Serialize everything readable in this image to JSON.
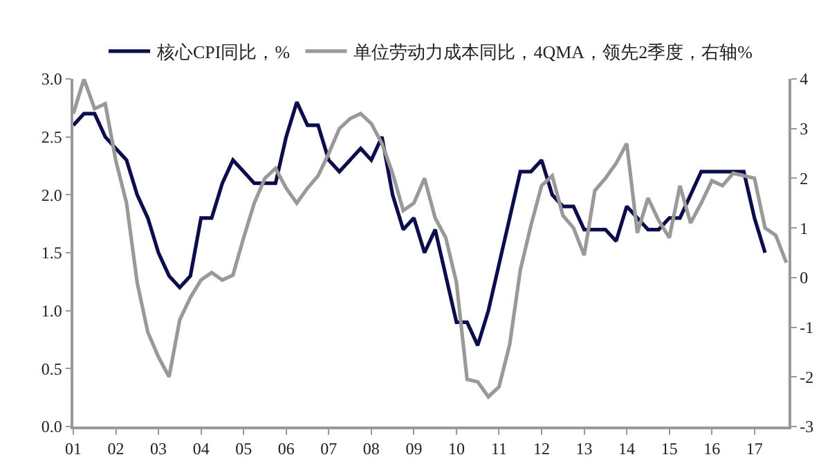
{
  "chart_data": {
    "type": "line",
    "x": [
      2001.0,
      2001.25,
      2001.5,
      2001.75,
      2002.0,
      2002.25,
      2002.5,
      2002.75,
      2003.0,
      2003.25,
      2003.5,
      2003.75,
      2004.0,
      2004.25,
      2004.5,
      2004.75,
      2005.0,
      2005.25,
      2005.5,
      2005.75,
      2006.0,
      2006.25,
      2006.5,
      2006.75,
      2007.0,
      2007.25,
      2007.5,
      2007.75,
      2008.0,
      2008.25,
      2008.5,
      2008.75,
      2009.0,
      2009.25,
      2009.5,
      2009.75,
      2010.0,
      2010.25,
      2010.5,
      2010.75,
      2011.0,
      2011.25,
      2011.5,
      2011.75,
      2012.0,
      2012.25,
      2012.5,
      2012.75,
      2013.0,
      2013.25,
      2013.5,
      2013.75,
      2014.0,
      2014.25,
      2014.5,
      2014.75,
      2015.0,
      2015.25,
      2015.5,
      2015.75,
      2016.0,
      2016.25,
      2016.5,
      2016.75,
      2017.0,
      2017.25,
      2017.5,
      2017.75
    ],
    "series": [
      {
        "name": "核心CPI同比，%",
        "color": "#0d0d4d",
        "values": [
          2.6,
          2.7,
          2.7,
          2.5,
          2.4,
          2.3,
          2.0,
          1.8,
          1.5,
          1.3,
          1.2,
          1.3,
          1.8,
          1.8,
          2.1,
          2.3,
          2.2,
          2.1,
          2.1,
          2.1,
          2.5,
          2.8,
          2.6,
          2.6,
          2.3,
          2.2,
          2.3,
          2.4,
          2.3,
          2.5,
          2.0,
          1.7,
          1.8,
          1.5,
          1.7,
          1.3,
          0.9,
          0.9,
          0.7,
          1.0,
          1.4,
          1.8,
          2.2,
          2.2,
          2.3,
          2.0,
          1.9,
          1.9,
          1.7,
          1.7,
          1.7,
          1.6,
          1.9,
          1.8,
          1.7,
          1.7,
          1.8,
          1.8,
          2.0,
          2.2,
          2.2,
          2.2,
          2.2,
          2.2,
          1.8,
          1.5,
          null,
          null
        ]
      },
      {
        "name": "单位劳动力成本同比，4QMA，领先2季度，右轴%",
        "color": "#999999",
        "axis": "y2",
        "values": [
          3.3,
          4.0,
          3.4,
          3.5,
          2.35,
          1.5,
          -0.1,
          -1.1,
          -1.6,
          -2.0,
          -0.85,
          -0.4,
          -0.05,
          0.1,
          -0.05,
          0.05,
          0.8,
          1.5,
          2.0,
          2.2,
          1.8,
          1.5,
          1.8,
          2.05,
          2.5,
          3.0,
          3.2,
          3.3,
          3.1,
          2.7,
          2.1,
          1.35,
          1.5,
          2.0,
          1.2,
          0.8,
          -0.1,
          -2.05,
          -2.1,
          -2.4,
          -2.2,
          -1.35,
          0.15,
          1.05,
          1.85,
          2.05,
          1.25,
          1.0,
          0.45,
          1.75,
          2.0,
          2.3,
          2.7,
          0.9,
          1.6,
          1.15,
          0.8,
          1.85,
          1.1,
          1.5,
          1.95,
          1.85,
          2.1,
          2.05,
          2.0,
          1.0,
          0.85,
          0.3
        ]
      }
    ],
    "xlim": [
      2001,
      2017.8
    ],
    "xticks": [
      {
        "value": 2001,
        "label": "01"
      },
      {
        "value": 2002,
        "label": "02"
      },
      {
        "value": 2003,
        "label": "03"
      },
      {
        "value": 2004,
        "label": "04"
      },
      {
        "value": 2005,
        "label": "05"
      },
      {
        "value": 2006,
        "label": "06"
      },
      {
        "value": 2007,
        "label": "07"
      },
      {
        "value": 2008,
        "label": "08"
      },
      {
        "value": 2009,
        "label": "09"
      },
      {
        "value": 2010,
        "label": "10"
      },
      {
        "value": 2011,
        "label": "11"
      },
      {
        "value": 2012,
        "label": "12"
      },
      {
        "value": 2013,
        "label": "13"
      },
      {
        "value": 2014,
        "label": "14"
      },
      {
        "value": 2015,
        "label": "15"
      },
      {
        "value": 2016,
        "label": "16"
      },
      {
        "value": 2017,
        "label": "17"
      }
    ],
    "ylim": [
      0,
      3
    ],
    "yticks": [
      {
        "value": 0,
        "label": "0.0"
      },
      0.5,
      {
        "value": 1,
        "label": "1.0"
      },
      1.5,
      {
        "value": 2,
        "label": "2.0"
      },
      2.5,
      {
        "value": 3,
        "label": "3.0"
      }
    ],
    "y2lim": [
      -3,
      4
    ],
    "y2ticks": [
      -3,
      -2,
      -1,
      0,
      1,
      2,
      3,
      4
    ],
    "legend": "top",
    "marker": "none",
    "line_style": "solid"
  }
}
